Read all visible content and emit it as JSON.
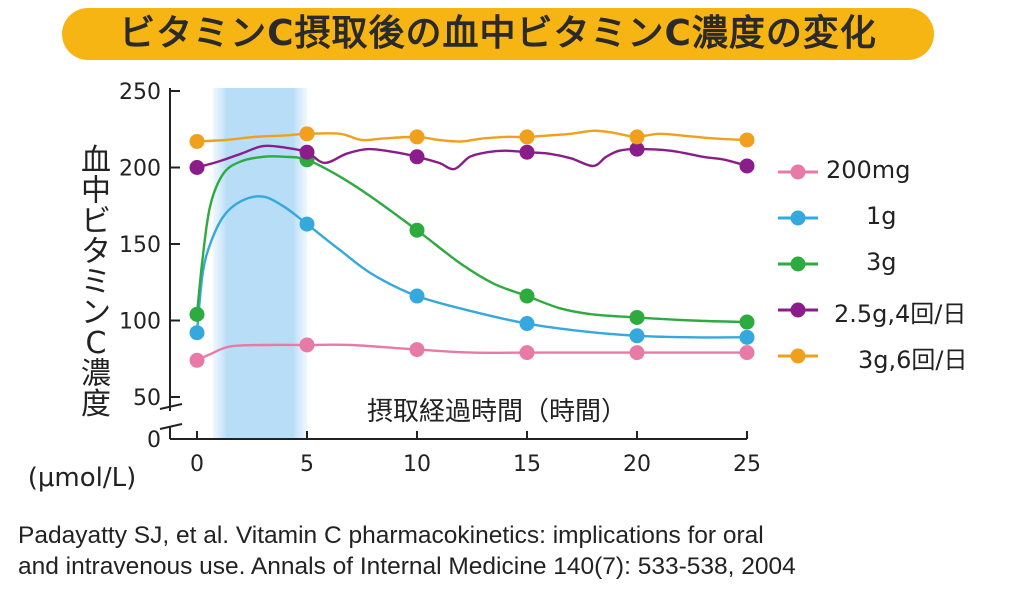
{
  "title": "ビタミンC摂取後の血中ビタミンC濃度の変化",
  "citation": {
    "line1": "Padayatty SJ, et al. Vitamin C pharmacokinetics: implications for oral",
    "line2": "and intravenous use. Annals of Internal Medicine 140(7): 533-538, 2004"
  },
  "chart_data": {
    "type": "line",
    "xlabel": "摂取経過時間（時間）",
    "ylabel": "血中ビタミンC濃度",
    "yunit": "(μmol/L)",
    "xlim": [
      0,
      25
    ],
    "ylim_display": [
      50,
      250
    ],
    "y_break": true,
    "x_ticks": [
      "0",
      "5",
      "10",
      "15",
      "20",
      "25"
    ],
    "y_ticks": [
      "250",
      "200",
      "150",
      "100",
      "50",
      "0"
    ],
    "highlight_band_x": [
      1,
      5
    ],
    "legend_position": "right",
    "series": [
      {
        "name": "200mg",
        "color": "#e87aa7",
        "points": [
          [
            0,
            74
          ],
          [
            5,
            84
          ],
          [
            10,
            81
          ],
          [
            15,
            79
          ],
          [
            20,
            79
          ],
          [
            25,
            79
          ]
        ],
        "curve": [
          [
            0,
            74
          ],
          [
            0.6,
            78
          ],
          [
            1.5,
            83
          ],
          [
            3,
            84
          ],
          [
            5,
            84
          ],
          [
            7,
            84
          ],
          [
            10,
            81
          ],
          [
            12.5,
            79
          ],
          [
            15,
            79
          ],
          [
            17.5,
            79
          ],
          [
            20,
            79
          ],
          [
            22.5,
            79
          ],
          [
            25,
            79
          ]
        ]
      },
      {
        "name": "1g",
        "color": "#35a8de",
        "points": [
          [
            0,
            92
          ],
          [
            5,
            163
          ],
          [
            10,
            116
          ],
          [
            15,
            98
          ],
          [
            20,
            90
          ],
          [
            25,
            89
          ]
        ],
        "curve": [
          [
            0,
            92
          ],
          [
            0.25,
            130
          ],
          [
            0.6,
            150
          ],
          [
            1.2,
            168
          ],
          [
            2,
            178
          ],
          [
            3,
            181
          ],
          [
            4,
            174
          ],
          [
            5,
            163
          ],
          [
            6.5,
            146
          ],
          [
            8,
            130
          ],
          [
            10,
            116
          ],
          [
            12.5,
            106
          ],
          [
            15,
            98
          ],
          [
            17.5,
            93
          ],
          [
            20,
            90
          ],
          [
            22.5,
            89
          ],
          [
            25,
            89
          ]
        ]
      },
      {
        "name": "3g",
        "color": "#2eab3f",
        "points": [
          [
            0,
            104
          ],
          [
            5,
            205
          ],
          [
            10,
            159
          ],
          [
            15,
            116
          ],
          [
            20,
            102
          ],
          [
            25,
            99
          ]
        ],
        "curve": [
          [
            0,
            104
          ],
          [
            0.25,
            140
          ],
          [
            0.6,
            175
          ],
          [
            1.2,
            196
          ],
          [
            2,
            204
          ],
          [
            3,
            207
          ],
          [
            4,
            207
          ],
          [
            5,
            205
          ],
          [
            6.5,
            194
          ],
          [
            8,
            180
          ],
          [
            10,
            159
          ],
          [
            12,
            137
          ],
          [
            13.5,
            124
          ],
          [
            15,
            116
          ],
          [
            16.5,
            108
          ],
          [
            18,
            104
          ],
          [
            20,
            102
          ],
          [
            22.5,
            100
          ],
          [
            25,
            99
          ]
        ]
      },
      {
        "name": "2.5g,4回/日",
        "color": "#8a1d8a",
        "points": [
          [
            0,
            200
          ],
          [
            5,
            210
          ],
          [
            10,
            207
          ],
          [
            15,
            210
          ],
          [
            20,
            212
          ],
          [
            25,
            201
          ]
        ],
        "curve": [
          [
            0,
            200
          ],
          [
            1,
            204
          ],
          [
            2,
            209
          ],
          [
            3,
            214
          ],
          [
            4,
            213
          ],
          [
            5,
            210
          ],
          [
            5.8,
            203
          ],
          [
            6.8,
            209
          ],
          [
            7.8,
            212
          ],
          [
            9,
            210
          ],
          [
            10,
            207
          ],
          [
            11,
            203
          ],
          [
            11.7,
            199
          ],
          [
            12.4,
            207
          ],
          [
            13.2,
            210
          ],
          [
            14,
            211
          ],
          [
            15,
            210
          ],
          [
            16,
            209
          ],
          [
            17,
            206
          ],
          [
            18,
            201
          ],
          [
            18.6,
            207
          ],
          [
            19.2,
            211
          ],
          [
            20,
            212
          ],
          [
            21.5,
            211
          ],
          [
            23,
            207
          ],
          [
            24,
            205
          ],
          [
            25,
            201
          ]
        ]
      },
      {
        "name": "3g,6回/日",
        "color": "#f0a01c",
        "points": [
          [
            0,
            217
          ],
          [
            5,
            222
          ],
          [
            10,
            220
          ],
          [
            15,
            220
          ],
          [
            20,
            220
          ],
          [
            25,
            218
          ]
        ],
        "curve": [
          [
            0,
            217
          ],
          [
            1.3,
            218
          ],
          [
            2.6,
            220
          ],
          [
            4,
            221
          ],
          [
            5,
            222
          ],
          [
            6.5,
            222
          ],
          [
            7.5,
            218
          ],
          [
            8.5,
            219
          ],
          [
            10,
            220
          ],
          [
            11,
            218
          ],
          [
            12,
            217
          ],
          [
            13,
            219
          ],
          [
            14,
            220
          ],
          [
            15,
            220
          ],
          [
            16,
            221
          ],
          [
            17,
            222
          ],
          [
            18,
            224
          ],
          [
            18.8,
            223
          ],
          [
            19.5,
            221
          ],
          [
            20,
            220
          ],
          [
            21,
            222
          ],
          [
            22,
            221
          ],
          [
            23.5,
            219
          ],
          [
            25,
            218
          ]
        ]
      }
    ]
  }
}
